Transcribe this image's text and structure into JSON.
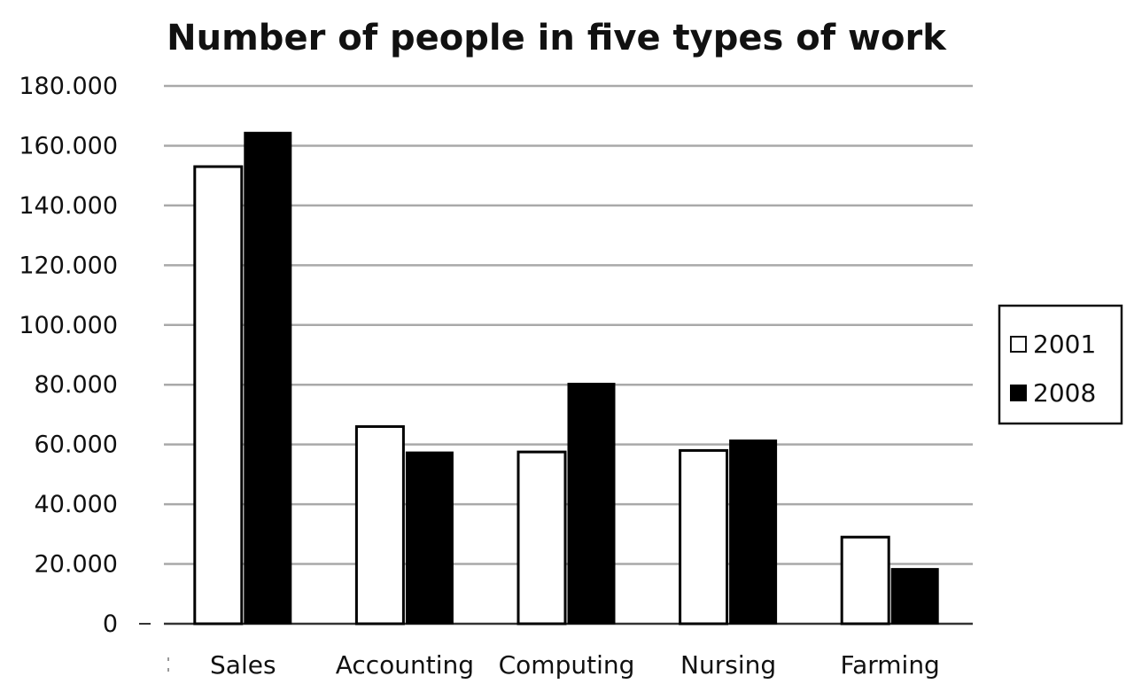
{
  "chart_data": {
    "type": "bar",
    "title": "Number of people in five types of work",
    "xlabel": "",
    "ylabel": "",
    "categories": [
      "Sales",
      "Accounting",
      "Computing",
      "Nursing",
      "Farming"
    ],
    "series": [
      {
        "name": "2001",
        "color": "#ffffff",
        "values": [
          153000,
          66000,
          57500,
          58000,
          29000
        ]
      },
      {
        "name": "2008",
        "color": "#000000",
        "values": [
          164500,
          57500,
          80500,
          61500,
          18500
        ]
      }
    ],
    "yticks": [
      0,
      20000,
      40000,
      60000,
      80000,
      100000,
      120000,
      140000,
      160000,
      180000
    ],
    "ytick_labels": [
      "0",
      "20.000",
      "40.000",
      "60.000",
      "80.000",
      "100.000",
      "120.000",
      "140.000",
      "160.000",
      "180.000"
    ],
    "ylim": [
      0,
      180000
    ],
    "grid": true,
    "legend_position": "right"
  }
}
